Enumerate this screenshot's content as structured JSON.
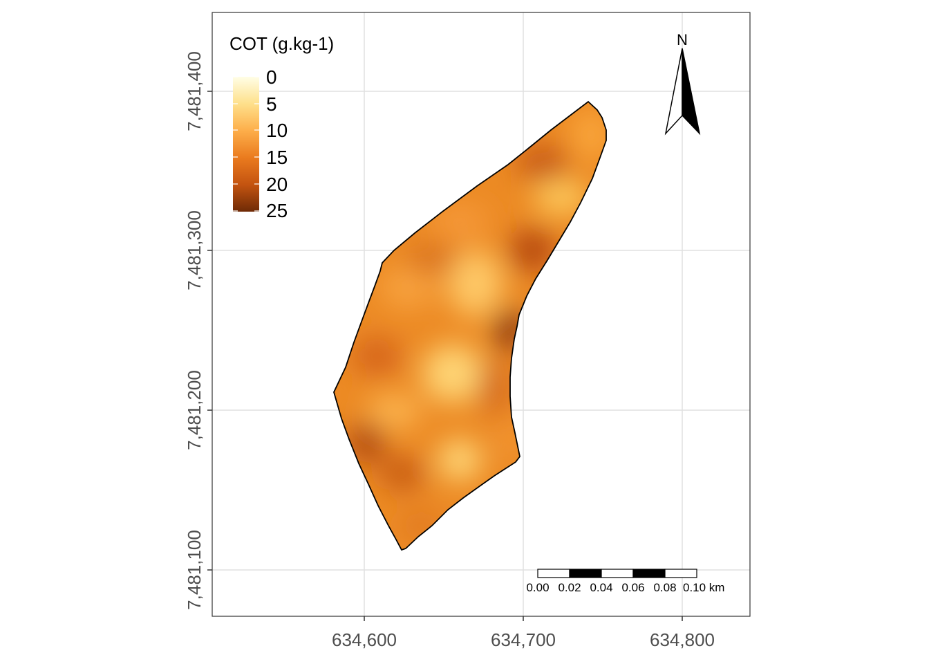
{
  "map": {
    "x_ticks": [
      "634,600",
      "634,700",
      "634,800"
    ],
    "y_ticks": [
      "7,481,400",
      "7,481,300",
      "7,481,200",
      "7,481,100"
    ],
    "grid": true
  },
  "legend": {
    "title": "COT (g.kg-1)",
    "labels": [
      "0",
      "5",
      "10",
      "15",
      "20",
      "25"
    ],
    "colors": [
      "#fffee6",
      "#fee08b",
      "#fdae4a",
      "#ea7b1e",
      "#c45410",
      "#6e2a06"
    ]
  },
  "north_arrow": {
    "label": "N"
  },
  "scale_bar": {
    "labels": [
      "0.00",
      "0.02",
      "0.04",
      "0.06",
      "0.08",
      "0.10 km"
    ]
  },
  "surface": {
    "base_color": "#ec8a24",
    "outline_color": "#000000"
  }
}
